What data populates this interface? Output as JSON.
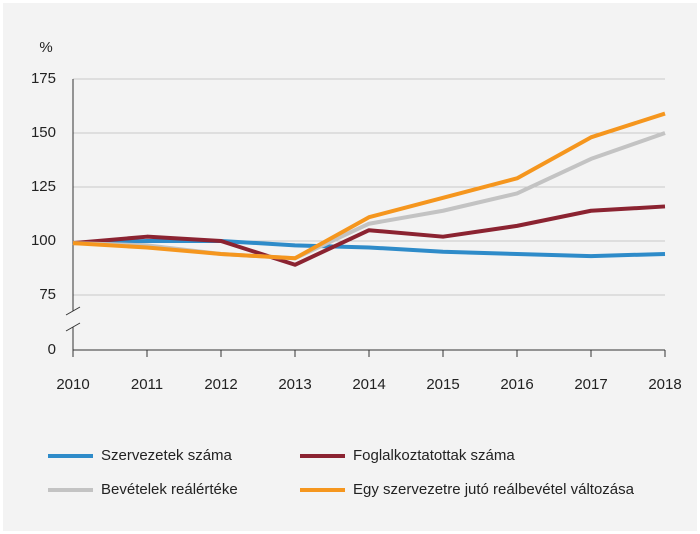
{
  "chart_data": {
    "type": "line",
    "y_unit": "%",
    "x": [
      2010,
      2011,
      2012,
      2013,
      2014,
      2015,
      2016,
      2017,
      2018
    ],
    "xlim": [
      2010,
      2018
    ],
    "xticks": [
      2010,
      2011,
      2012,
      2013,
      2014,
      2015,
      2016,
      2017,
      2018
    ],
    "ylim": [
      0,
      175
    ],
    "yticks": [
      0,
      75,
      100,
      125,
      150,
      175
    ],
    "axis_break": [
      0,
      75
    ],
    "grid": true,
    "series": [
      {
        "name": "Szervezetek száma",
        "color": "#2e8bc9",
        "values": [
          99,
          100,
          100,
          98,
          97,
          95,
          94,
          93,
          94
        ]
      },
      {
        "name": "Foglalkoztatottak száma",
        "color": "#8b2331",
        "values": [
          99,
          102,
          100,
          89,
          105,
          102,
          107,
          114,
          116
        ]
      },
      {
        "name": "Bevételek reálértéke",
        "color": "#c3c3c3",
        "values": [
          99,
          98,
          94,
          92,
          108,
          114,
          122,
          138,
          150
        ]
      },
      {
        "name": "Egy szervezetre jutó reálbevétel változása",
        "color": "#f5961e",
        "values": [
          99,
          97,
          94,
          92,
          111,
          120,
          129,
          148,
          159
        ]
      }
    ]
  }
}
